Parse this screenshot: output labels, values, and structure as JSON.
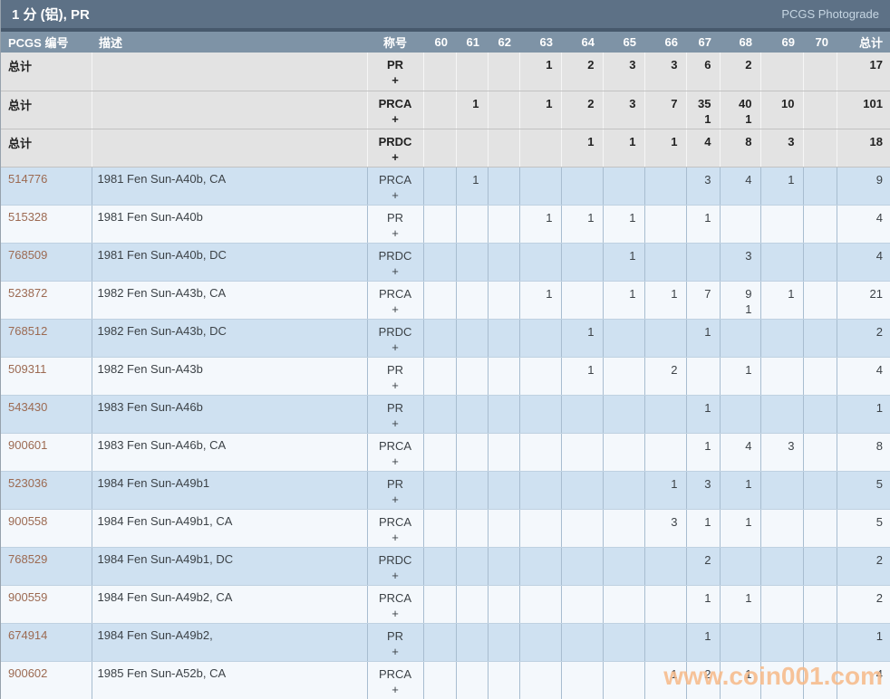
{
  "title_bar": {
    "title": "1 分 (铝), PR",
    "photograde_link": "PCGS Photograde"
  },
  "table": {
    "headers": {
      "pcgs_number": "PCGS 编号",
      "description": "描述",
      "designation": "称号",
      "grades": [
        "60",
        "61",
        "62",
        "63",
        "64",
        "65",
        "66",
        "67",
        "68",
        "69",
        "70"
      ],
      "total": "总计"
    },
    "rows": [
      {
        "type": "total",
        "label": "总计",
        "description": "",
        "designation": "PR",
        "plus": "+",
        "g": [
          "",
          "",
          "",
          "1",
          "2",
          "3",
          "3",
          "6",
          "2",
          "",
          ""
        ],
        "p": [
          "",
          "",
          "",
          "",
          "",
          "",
          "",
          "",
          "",
          "",
          ""
        ],
        "total": "17"
      },
      {
        "type": "total",
        "label": "总计",
        "description": "",
        "designation": "PRCA",
        "plus": "+",
        "g": [
          "",
          "1",
          "",
          "1",
          "2",
          "3",
          "7",
          "35",
          "40",
          "10",
          ""
        ],
        "p": [
          "",
          "",
          "",
          "",
          "",
          "",
          "",
          "1",
          "1",
          "",
          ""
        ],
        "total": "101"
      },
      {
        "type": "total",
        "label": "总计",
        "description": "",
        "designation": "PRDC",
        "plus": "+",
        "g": [
          "",
          "",
          "",
          "",
          "1",
          "1",
          "1",
          "4",
          "8",
          "3",
          ""
        ],
        "p": [
          "",
          "",
          "",
          "",
          "",
          "",
          "",
          "",
          "",
          "",
          ""
        ],
        "total": "18"
      },
      {
        "type": "data",
        "label": "514776",
        "description": "1981 Fen Sun-A40b, CA",
        "designation": "PRCA",
        "plus": "+",
        "g": [
          "",
          "1",
          "",
          "",
          "",
          "",
          "",
          "3",
          "4",
          "1",
          ""
        ],
        "p": [
          "",
          "",
          "",
          "",
          "",
          "",
          "",
          "",
          "",
          "",
          ""
        ],
        "total": "9"
      },
      {
        "type": "data",
        "label": "515328",
        "description": "1981 Fen Sun-A40b",
        "designation": "PR",
        "plus": "+",
        "g": [
          "",
          "",
          "",
          "1",
          "1",
          "1",
          "",
          "1",
          "",
          "",
          ""
        ],
        "p": [
          "",
          "",
          "",
          "",
          "",
          "",
          "",
          "",
          "",
          "",
          ""
        ],
        "total": "4"
      },
      {
        "type": "data",
        "label": "768509",
        "description": "1981 Fen Sun-A40b, DC",
        "designation": "PRDC",
        "plus": "+",
        "g": [
          "",
          "",
          "",
          "",
          "",
          "1",
          "",
          "",
          "3",
          "",
          ""
        ],
        "p": [
          "",
          "",
          "",
          "",
          "",
          "",
          "",
          "",
          "",
          "",
          ""
        ],
        "total": "4"
      },
      {
        "type": "data",
        "label": "523872",
        "description": "1982 Fen Sun-A43b, CA",
        "designation": "PRCA",
        "plus": "+",
        "g": [
          "",
          "",
          "",
          "1",
          "",
          "1",
          "1",
          "7",
          "9",
          "1",
          ""
        ],
        "p": [
          "",
          "",
          "",
          "",
          "",
          "",
          "",
          "",
          "1",
          "",
          ""
        ],
        "total": "21"
      },
      {
        "type": "data",
        "label": "768512",
        "description": "1982 Fen Sun-A43b, DC",
        "designation": "PRDC",
        "plus": "+",
        "g": [
          "",
          "",
          "",
          "",
          "1",
          "",
          "",
          "1",
          "",
          "",
          ""
        ],
        "p": [
          "",
          "",
          "",
          "",
          "",
          "",
          "",
          "",
          "",
          "",
          ""
        ],
        "total": "2"
      },
      {
        "type": "data",
        "label": "509311",
        "description": "1982 Fen Sun-A43b",
        "designation": "PR",
        "plus": "+",
        "g": [
          "",
          "",
          "",
          "",
          "1",
          "",
          "2",
          "",
          "1",
          "",
          ""
        ],
        "p": [
          "",
          "",
          "",
          "",
          "",
          "",
          "",
          "",
          "",
          "",
          ""
        ],
        "total": "4"
      },
      {
        "type": "data",
        "label": "543430",
        "description": "1983 Fen Sun-A46b",
        "designation": "PR",
        "plus": "+",
        "g": [
          "",
          "",
          "",
          "",
          "",
          "",
          "",
          "1",
          "",
          "",
          ""
        ],
        "p": [
          "",
          "",
          "",
          "",
          "",
          "",
          "",
          "",
          "",
          "",
          ""
        ],
        "total": "1"
      },
      {
        "type": "data",
        "label": "900601",
        "description": "1983 Fen Sun-A46b, CA",
        "designation": "PRCA",
        "plus": "+",
        "g": [
          "",
          "",
          "",
          "",
          "",
          "",
          "",
          "1",
          "4",
          "3",
          ""
        ],
        "p": [
          "",
          "",
          "",
          "",
          "",
          "",
          "",
          "",
          "",
          "",
          ""
        ],
        "total": "8"
      },
      {
        "type": "data",
        "label": "523036",
        "description": "1984 Fen Sun-A49b1",
        "designation": "PR",
        "plus": "+",
        "g": [
          "",
          "",
          "",
          "",
          "",
          "",
          "1",
          "3",
          "1",
          "",
          ""
        ],
        "p": [
          "",
          "",
          "",
          "",
          "",
          "",
          "",
          "",
          "",
          "",
          ""
        ],
        "total": "5"
      },
      {
        "type": "data",
        "label": "900558",
        "description": "1984 Fen Sun-A49b1, CA",
        "designation": "PRCA",
        "plus": "+",
        "g": [
          "",
          "",
          "",
          "",
          "",
          "",
          "3",
          "1",
          "1",
          "",
          ""
        ],
        "p": [
          "",
          "",
          "",
          "",
          "",
          "",
          "",
          "",
          "",
          "",
          ""
        ],
        "total": "5"
      },
      {
        "type": "data",
        "label": "768529",
        "description": "1984 Fen Sun-A49b1, DC",
        "designation": "PRDC",
        "plus": "+",
        "g": [
          "",
          "",
          "",
          "",
          "",
          "",
          "",
          "2",
          "",
          "",
          ""
        ],
        "p": [
          "",
          "",
          "",
          "",
          "",
          "",
          "",
          "",
          "",
          "",
          ""
        ],
        "total": "2"
      },
      {
        "type": "data",
        "label": "900559",
        "description": "1984 Fen Sun-A49b2, CA",
        "designation": "PRCA",
        "plus": "+",
        "g": [
          "",
          "",
          "",
          "",
          "",
          "",
          "",
          "1",
          "1",
          "",
          ""
        ],
        "p": [
          "",
          "",
          "",
          "",
          "",
          "",
          "",
          "",
          "",
          "",
          ""
        ],
        "total": "2"
      },
      {
        "type": "data",
        "label": "674914",
        "description": "1984 Fen Sun-A49b2,",
        "designation": "PR",
        "plus": "+",
        "g": [
          "",
          "",
          "",
          "",
          "",
          "",
          "",
          "1",
          "",
          "",
          ""
        ],
        "p": [
          "",
          "",
          "",
          "",
          "",
          "",
          "",
          "",
          "",
          "",
          ""
        ],
        "total": "1"
      },
      {
        "type": "data",
        "label": "900602",
        "description": "1985 Fen Sun-A52b, CA",
        "designation": "PRCA",
        "plus": "+",
        "g": [
          "",
          "",
          "",
          "",
          "",
          "",
          "1",
          "2",
          "1",
          "",
          ""
        ],
        "p": [
          "",
          "",
          "",
          "",
          "",
          "",
          "",
          "",
          "",
          "",
          ""
        ],
        "total": "4"
      }
    ]
  },
  "watermark": "www.coin001.com",
  "colors": {
    "title_bar_bg": "#5d7186",
    "separator": "#47596c",
    "header_bg": "#7e93a6",
    "total_row_bg": "#e3e3e3",
    "row_blue_bg": "#cfe1f1",
    "row_white_bg": "#f4f8fc",
    "pcgs_number_link": "#9c6a52",
    "watermark": "#f7b987"
  }
}
